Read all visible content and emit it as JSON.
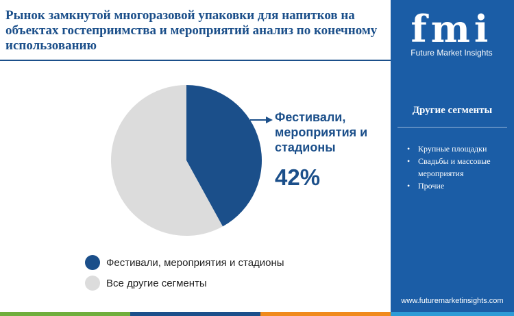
{
  "title": "Рынок замкнутой многоразовой упаковки для напитков на объектах гостеприимства и мероприятий  анализ по конечному использованию",
  "chart_data": {
    "type": "pie",
    "slices": [
      {
        "label": "Фестивали, мероприятия и стадионы",
        "value": 42,
        "color": "#1b4f8a"
      },
      {
        "label": "Все другие сегменты",
        "value": 58,
        "color": "#dcdcdc"
      }
    ],
    "callout": {
      "label": "Фестивали, мероприятия и стадионы",
      "value_text": "42%"
    }
  },
  "legend": [
    {
      "label": "Фестивали, мероприятия и стадионы",
      "color": "#1b4f8a"
    },
    {
      "label": "Все другие сегменты",
      "color": "#dcdcdc"
    }
  ],
  "sidebar": {
    "logo_text": "fmi",
    "logo_tagline": "Future Market Insights",
    "heading": "Другие сегменты",
    "items": [
      "Крупные площадки",
      "Свадьбы и массовые мероприятия",
      "Прочие"
    ],
    "website": "www.futuremarketinsights.com"
  },
  "colors": {
    "accent": "#1b4f8a",
    "sidebar_bg": "#1b5da6",
    "bar_colors": [
      "#6fae3c",
      "#1b4f8a",
      "#f08a1c",
      "#2e9bd6"
    ]
  }
}
